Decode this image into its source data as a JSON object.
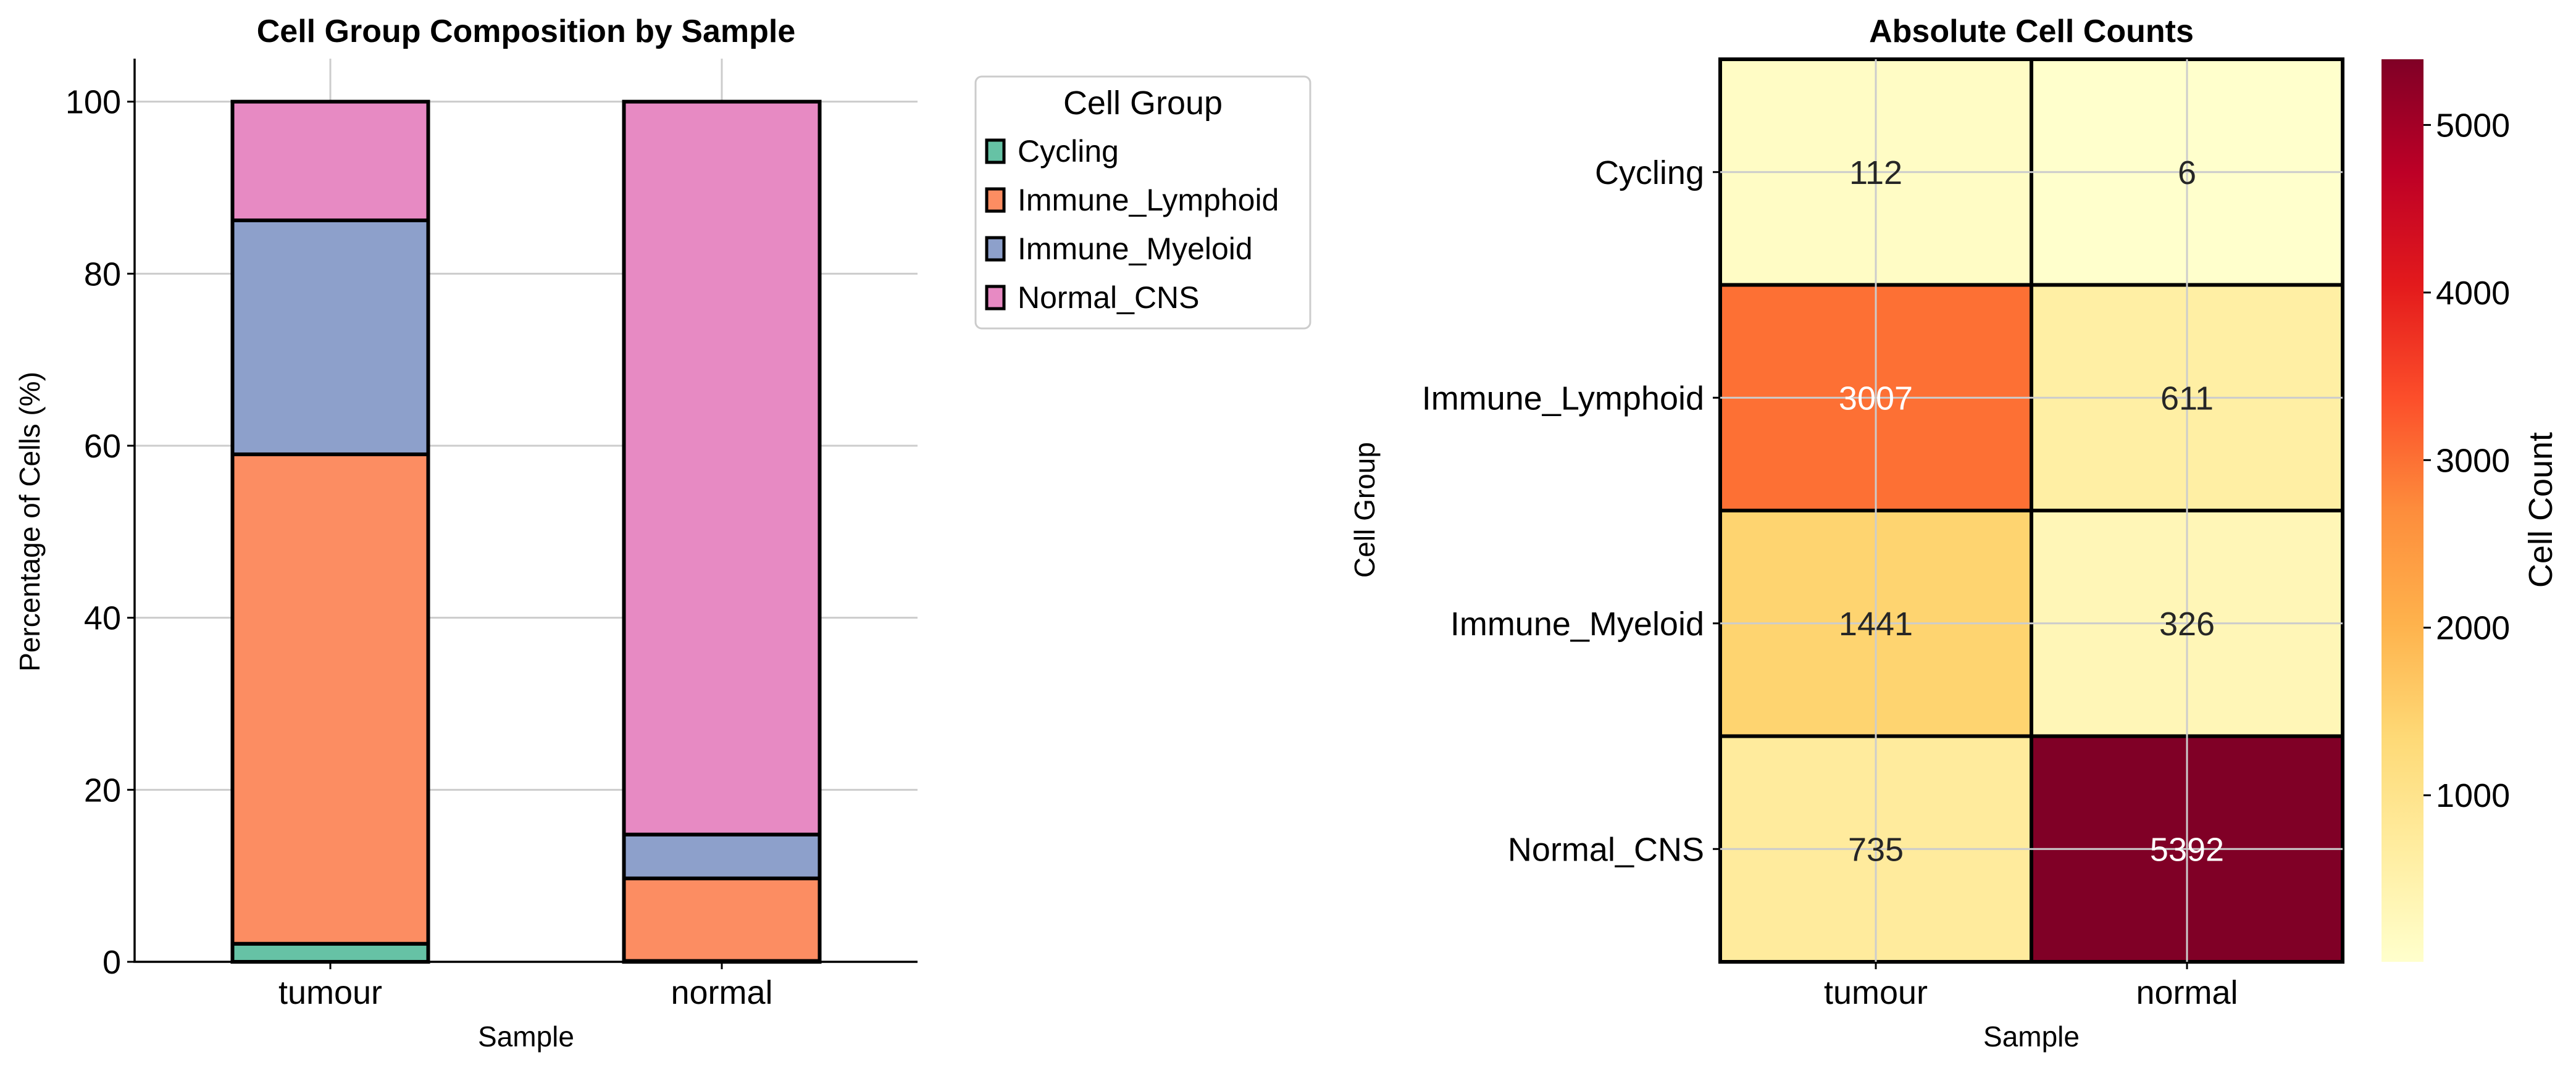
{
  "chart_data": [
    {
      "type": "bar",
      "stacked": true,
      "title": "Cell Group Composition by Sample",
      "xlabel": "Sample",
      "ylabel": "Percentage of Cells (%)",
      "categories": [
        "tumour",
        "normal"
      ],
      "ylim": [
        0,
        105
      ],
      "yticks": [
        0,
        20,
        40,
        60,
        80,
        100
      ],
      "grid": true,
      "legend": {
        "title": "Cell Group",
        "placement": "outside-top-right"
      },
      "series": [
        {
          "name": "Cycling",
          "color": "#66c2a5",
          "values": [
            2.1,
            0.1
          ]
        },
        {
          "name": "Immune_Lymphoid",
          "color": "#fc8d62",
          "values": [
            56.9,
            9.6
          ]
        },
        {
          "name": "Immune_Myeloid",
          "color": "#8da0cb",
          "values": [
            27.2,
            5.1
          ]
        },
        {
          "name": "Normal_CNS",
          "color": "#e78ac3",
          "values": [
            13.8,
            85.2
          ]
        }
      ]
    },
    {
      "type": "heatmap",
      "title": "Absolute Cell Counts",
      "xlabel": "Sample",
      "ylabel": "Cell Group",
      "x": [
        "tumour",
        "normal"
      ],
      "y": [
        "Cycling",
        "Immune_Lymphoid",
        "Immune_Myeloid",
        "Normal_CNS"
      ],
      "values": [
        [
          112,
          6
        ],
        [
          3007,
          611
        ],
        [
          1441,
          326
        ],
        [
          735,
          5392
        ]
      ],
      "value_labels": [
        [
          "112",
          "6"
        ],
        [
          "3007",
          "611"
        ],
        [
          "1441",
          "326"
        ],
        [
          "735",
          "5392"
        ]
      ],
      "colormap": "YlOrRd",
      "colorbar": {
        "label": "Cell Count",
        "range": [
          6,
          5392
        ],
        "ticks": [
          1000,
          2000,
          3000,
          4000,
          5000
        ],
        "tick_labels": [
          "1000",
          "2000",
          "3000",
          "4000",
          "5000"
        ]
      },
      "grid": true
    }
  ]
}
